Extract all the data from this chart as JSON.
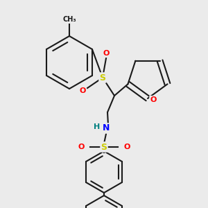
{
  "background_color": "#ebebeb",
  "bond_color": "#1a1a1a",
  "bond_width": 1.5,
  "atom_colors": {
    "S": "#cccc00",
    "O": "#ff0000",
    "N": "#0000ff",
    "H": "#008080",
    "C": "#1a1a1a"
  },
  "figsize": [
    3.0,
    3.0
  ],
  "dpi": 100
}
